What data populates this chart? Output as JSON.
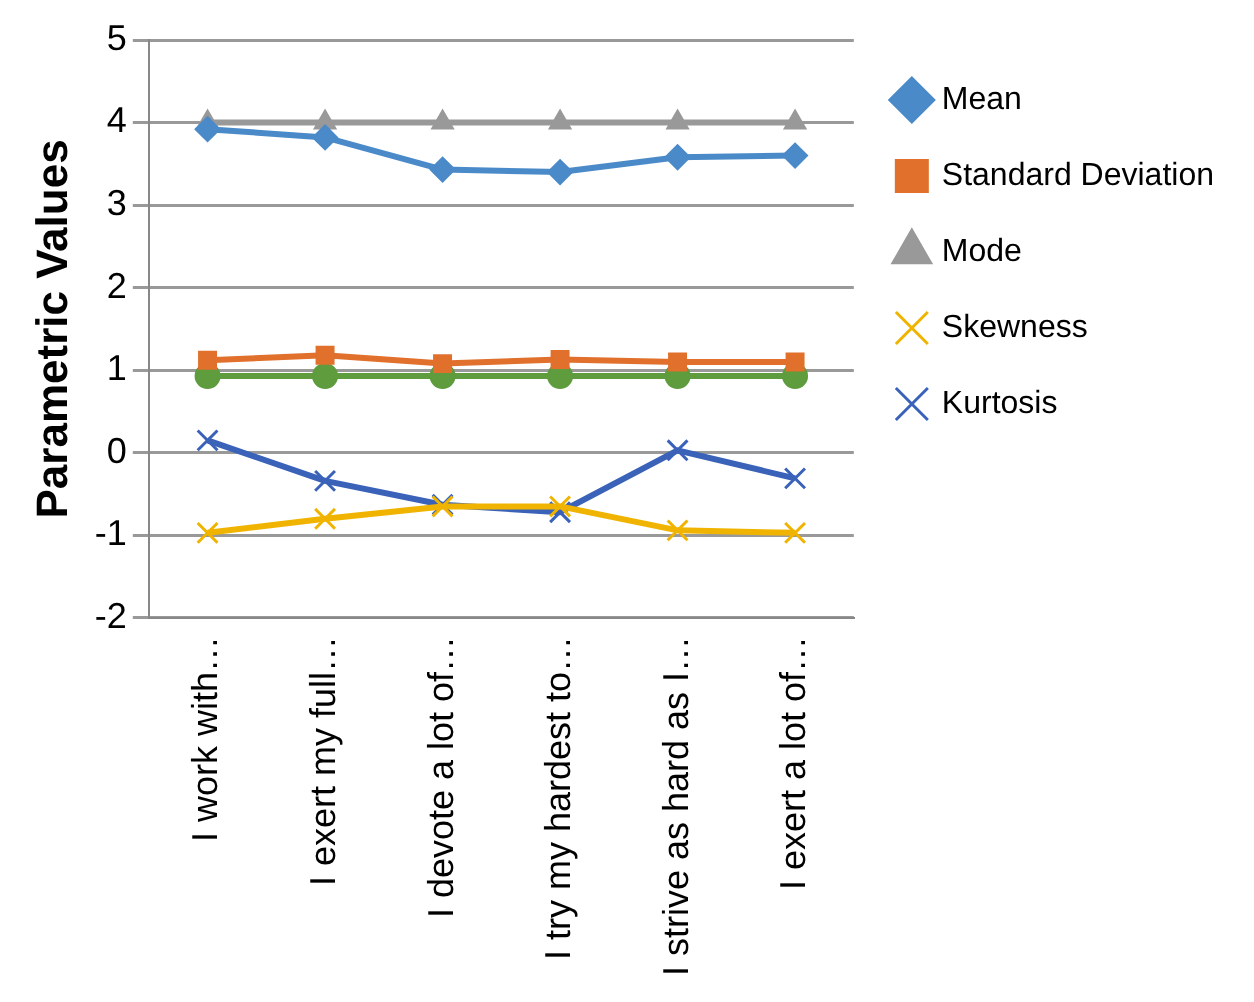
{
  "chart_data": {
    "type": "line",
    "ylabel": "Parametric Values",
    "categories": [
      "I work with…",
      "I exert my full…",
      "I devote a lot of…",
      "I try my hardest to…",
      "I strive as hard as I…",
      "I exert a lot of…"
    ],
    "ylim": [
      -2,
      5
    ],
    "yticks": [
      -2,
      -1,
      0,
      1,
      2,
      3,
      4,
      5
    ],
    "grid": "y",
    "legend": "right",
    "series": [
      {
        "name": "Mean",
        "color": "#4a8ac9",
        "marker": "diamond",
        "values": [
          3.92,
          3.82,
          3.43,
          3.4,
          3.58,
          3.6
        ]
      },
      {
        "name": "Standard Deviation",
        "color": "#e0702b",
        "marker": "square",
        "values": [
          1.12,
          1.18,
          1.08,
          1.13,
          1.1,
          1.1
        ]
      },
      {
        "name": "Mode",
        "color": "#999999",
        "marker": "triangle",
        "values": [
          4,
          4,
          4,
          4,
          4,
          4
        ]
      },
      {
        "color": "#5e9c3e",
        "marker": "circle",
        "values": [
          0.93,
          0.93,
          0.93,
          0.93,
          0.93,
          0.93
        ]
      },
      {
        "name": "Skewness",
        "color": "#f0b400",
        "marker": "cross",
        "values": [
          -0.97,
          -0.8,
          -0.65,
          -0.65,
          -0.94,
          -0.97
        ]
      },
      {
        "name": "Kurtosis",
        "color": "#3a62b8",
        "marker": "cross",
        "values": [
          0.15,
          -0.34,
          -0.63,
          -0.72,
          0.03,
          -0.31
        ]
      }
    ]
  }
}
